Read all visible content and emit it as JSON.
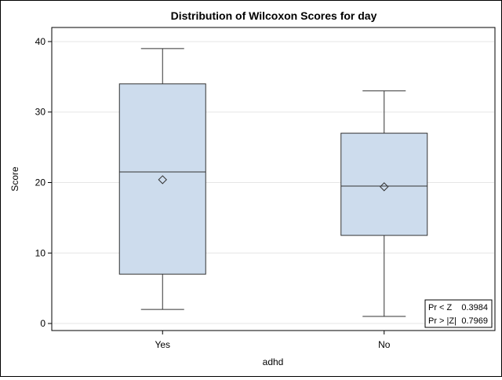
{
  "chart_data": {
    "type": "boxplot",
    "title": "Distribution of Wilcoxon Scores for day",
    "xlabel": "adhd",
    "ylabel": "Score",
    "ylim": [
      -1,
      42
    ],
    "yticks": [
      "0",
      "10",
      "20",
      "30",
      "40"
    ],
    "grid": true,
    "categories": [
      "Yes",
      "No"
    ],
    "boxes": [
      {
        "category": "Yes",
        "min": 2,
        "q1": 7,
        "median": 21.5,
        "q3": 34,
        "max": 39,
        "mean": 20.4
      },
      {
        "category": "No",
        "min": 1,
        "q1": 12.5,
        "median": 19.5,
        "q3": 27,
        "max": 33,
        "mean": 19.4
      }
    ],
    "box_fill": "#cddced",
    "inset": {
      "rows": [
        {
          "label": "Pr < Z",
          "value": "0.3984"
        },
        {
          "label": "Pr > |Z|",
          "value": "0.7969"
        }
      ]
    }
  }
}
